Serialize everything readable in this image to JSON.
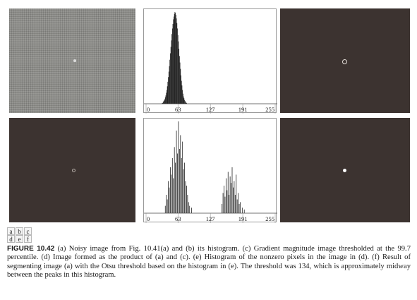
{
  "figure": {
    "panel_letters": [
      [
        "a",
        "b",
        "c"
      ],
      [
        "d",
        "e",
        "f"
      ]
    ],
    "caption_label": "FIGURE 10.42",
    "caption_text": "(a) Noisy image from Fig. 10.41(a) and (b) its histogram. (c) Gradient magnitude image thresholded at the 99.7 percentile. (d) Image formed as the product of (a) and (c). (e) Histogram of the nonzero pixels in the image in (d). (f) Result of segmenting image (a) with the Otsu threshold based on the histogram in (e). The threshold was 134, which is approximately midway between the peaks in this histogram."
  },
  "chart_data": [
    {
      "type": "bar",
      "panel": "b",
      "xlim": [
        0,
        255
      ],
      "xticks": [
        "0",
        "63",
        "127",
        "191",
        "255"
      ],
      "distribution": "single peak near 63",
      "peak_x": 63,
      "values": [
        0,
        0,
        0,
        0,
        0,
        0,
        0,
        0,
        0,
        0,
        0,
        0,
        0,
        0,
        0,
        0,
        0,
        0,
        0,
        0,
        0,
        0,
        0,
        0,
        0,
        0,
        0,
        0,
        0,
        0,
        0,
        0,
        0.01,
        0.01,
        0.02,
        0.03,
        0.04,
        0.05,
        0.07,
        0.09,
        0.12,
        0.15,
        0.19,
        0.24,
        0.29,
        0.35,
        0.41,
        0.48,
        0.55,
        0.62,
        0.69,
        0.76,
        0.82,
        0.87,
        0.92,
        0.95,
        0.98,
        1.0,
        0.99,
        0.97,
        0.93,
        0.88,
        0.82,
        0.75,
        0.68,
        0.6,
        0.52,
        0.45,
        0.38,
        0.31,
        0.25,
        0.2,
        0.15,
        0.11,
        0.08,
        0.06,
        0.04,
        0.03,
        0.02,
        0.01,
        0.01,
        0,
        0,
        0,
        0,
        0,
        0,
        0,
        0,
        0,
        0,
        0,
        0,
        0,
        0,
        0,
        0,
        0,
        0,
        0,
        0,
        0,
        0,
        0,
        0,
        0,
        0,
        0,
        0,
        0,
        0,
        0,
        0,
        0,
        0,
        0,
        0,
        0,
        0,
        0,
        0,
        0,
        0,
        0,
        0,
        0,
        0,
        0
      ]
    },
    {
      "type": "bar",
      "panel": "e",
      "xlim": [
        0,
        255
      ],
      "xticks": [
        "0",
        "63",
        "127",
        "191",
        "255"
      ],
      "x": [
        38,
        40,
        42,
        44,
        46,
        48,
        50,
        52,
        54,
        56,
        58,
        60,
        62,
        64,
        66,
        68,
        70,
        72,
        74,
        76,
        78,
        80,
        82,
        84,
        86,
        90,
        150,
        152,
        154,
        156,
        158,
        160,
        162,
        164,
        166,
        168,
        170,
        172,
        174,
        176,
        178,
        180,
        182,
        184,
        186,
        190,
        194
      ],
      "values": [
        0.08,
        0.2,
        0.15,
        0.35,
        0.28,
        0.5,
        0.42,
        0.6,
        0.38,
        0.72,
        0.55,
        0.9,
        0.65,
        1.0,
        0.7,
        0.85,
        0.6,
        0.78,
        0.48,
        0.55,
        0.35,
        0.3,
        0.2,
        0.12,
        0.08,
        0.06,
        0.1,
        0.22,
        0.3,
        0.18,
        0.38,
        0.25,
        0.45,
        0.2,
        0.4,
        0.33,
        0.5,
        0.28,
        0.35,
        0.2,
        0.42,
        0.15,
        0.22,
        0.1,
        0.12,
        0.06,
        0.04
      ]
    }
  ]
}
